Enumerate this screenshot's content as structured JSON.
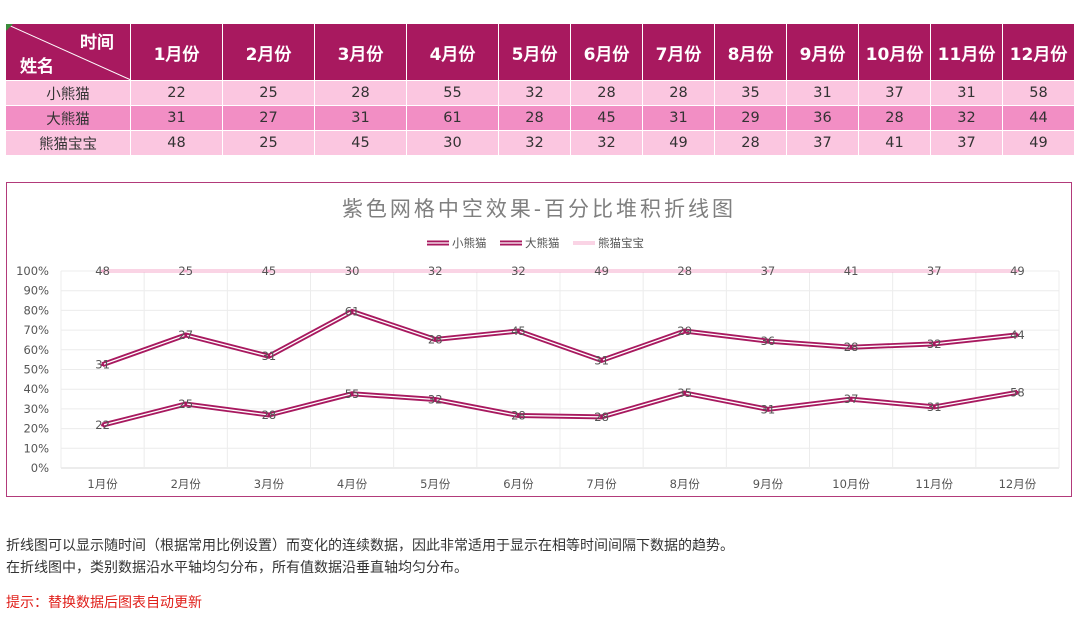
{
  "table": {
    "corner_top": "时间",
    "corner_bottom": "姓名",
    "months": [
      "1月份",
      "2月份",
      "3月份",
      "4月份",
      "5月份",
      "6月份",
      "7月份",
      "8月份",
      "9月份",
      "10月份",
      "11月份",
      "12月份"
    ],
    "rows": [
      {
        "name": "小熊猫",
        "values": [
          22,
          25,
          28,
          55,
          32,
          28,
          28,
          35,
          31,
          37,
          31,
          58
        ]
      },
      {
        "name": "大熊猫",
        "values": [
          31,
          27,
          31,
          61,
          28,
          45,
          31,
          29,
          36,
          28,
          32,
          44
        ]
      },
      {
        "name": "熊猫宝宝",
        "values": [
          48,
          25,
          45,
          30,
          32,
          32,
          49,
          28,
          37,
          41,
          37,
          49
        ]
      }
    ]
  },
  "chart_data": {
    "type": "line",
    "subtype": "100% stacked line",
    "title": "紫色网格中空效果-百分比堆积折线图",
    "categories": [
      "1月份",
      "2月份",
      "3月份",
      "4月份",
      "5月份",
      "6月份",
      "7月份",
      "8月份",
      "9月份",
      "10月份",
      "11月份",
      "12月份"
    ],
    "series": [
      {
        "name": "小熊猫",
        "values": [
          22,
          25,
          28,
          55,
          32,
          28,
          28,
          35,
          31,
          37,
          31,
          58
        ]
      },
      {
        "name": "大熊猫",
        "values": [
          31,
          27,
          31,
          61,
          28,
          45,
          31,
          29,
          36,
          28,
          32,
          44
        ]
      },
      {
        "name": "熊猫宝宝",
        "values": [
          48,
          25,
          45,
          30,
          32,
          32,
          49,
          28,
          37,
          41,
          37,
          49
        ]
      }
    ],
    "y_ticks": [
      "0%",
      "10%",
      "20%",
      "30%",
      "40%",
      "50%",
      "60%",
      "70%",
      "80%",
      "90%",
      "100%"
    ],
    "ylim": [
      0,
      1
    ],
    "grid": true,
    "legend_position": "top",
    "colors": {
      "line_outer": "#a8195f",
      "line_inner": "#ffffff",
      "line_light": "#f5a8cb",
      "grid": "#ececec",
      "label": "#555555",
      "title": "#7f7f7f"
    }
  },
  "notes": {
    "line1": "折线图可以显示随时间（根据常用比例设置）而变化的连续数据，因此非常适用于显示在相等时间间隔下数据的趋势。",
    "line2": "在折线图中，类别数据沿水平轴均匀分布，所有值数据沿垂直轴均匀分布。",
    "tip": "提示：替换数据后图表自动更新"
  }
}
